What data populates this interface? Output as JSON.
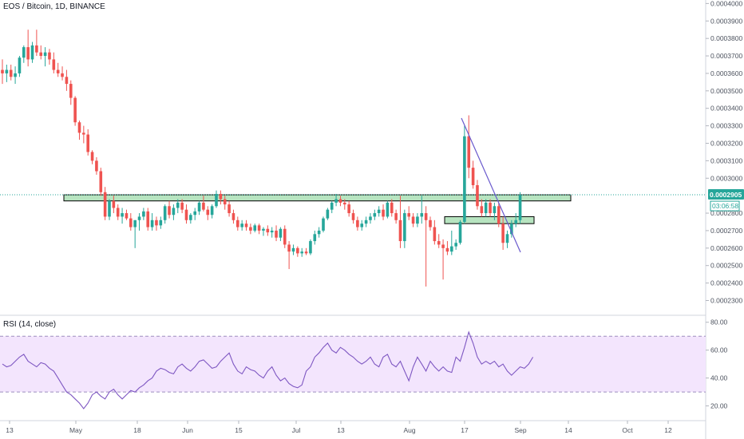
{
  "header": {
    "symbol_title": "EOS / Bitcoin, 1D, BINANCE"
  },
  "rsi": {
    "title": "RSI (14, close)",
    "upper_band": 70,
    "lower_band": 30,
    "y_ticks": [
      "80.00",
      "60.00",
      "40.00",
      "20.00"
    ],
    "series": [
      50,
      48,
      49,
      52,
      55,
      57,
      52,
      50,
      48,
      51,
      50,
      47,
      45,
      40,
      35,
      30,
      28,
      25,
      22,
      18,
      22,
      28,
      30,
      27,
      25,
      30,
      32,
      28,
      25,
      28,
      31,
      30,
      33,
      35,
      38,
      40,
      45,
      47,
      46,
      44,
      43,
      48,
      50,
      47,
      45,
      48,
      52,
      53,
      50,
      47,
      48,
      52,
      55,
      58,
      50,
      45,
      43,
      48,
      46,
      45,
      42,
      40,
      45,
      48,
      42,
      38,
      40,
      36,
      34,
      33,
      35,
      45,
      48,
      55,
      58,
      62,
      65,
      60,
      58,
      62,
      60,
      57,
      55,
      52,
      50,
      52,
      55,
      50,
      48,
      55,
      57,
      50,
      48,
      52,
      45,
      38,
      48,
      55,
      50,
      45,
      52,
      48,
      45,
      48,
      45,
      44,
      55,
      52,
      62,
      73,
      65,
      55,
      50,
      52,
      50,
      52,
      48,
      50,
      45,
      42,
      45,
      48,
      47,
      50,
      55
    ]
  },
  "price_axis": {
    "ticks": [
      "0.0004000",
      "0.0003900",
      "0.0003800",
      "0.0003700",
      "0.0003600",
      "0.0003500",
      "0.0003400",
      "0.0003300",
      "0.0003200",
      "0.0003100",
      "0.0003000",
      "0.0002800",
      "0.0002700",
      "0.0002600",
      "0.0002500",
      "0.0002400",
      "0.0002300"
    ],
    "last_price": "0.0002905",
    "countdown": "03:06:58",
    "last_price_color": "#26a69a"
  },
  "time_axis": {
    "labels": [
      "13",
      "May",
      "18",
      "Jun",
      "15",
      "Jul",
      "13",
      "Aug",
      "17",
      "Sep",
      "14",
      "Oct",
      "12"
    ]
  },
  "colors": {
    "up": "#26a69a",
    "down": "#ef5350",
    "rsi_line": "#7e57c2",
    "rsi_band_fill": "#f3e5fd",
    "zone_fill": "#b7e4c0",
    "trendline": "#6a5acd"
  },
  "chart_data": {
    "type": "candlestick",
    "title": "EOS / Bitcoin, 1D, BINANCE",
    "ylim": [
      0.000222,
      0.000402
    ],
    "series": [
      {
        "ohlc": [
          [
            0.000362,
            0.000368,
            0.000354,
            0.00036
          ],
          [
            0.00036,
            0.000365,
            0.000355,
            0.000362
          ],
          [
            0.000362,
            0.000365,
            0.000356,
            0.000358
          ],
          [
            0.000358,
            0.000364,
            0.000354,
            0.00036
          ],
          [
            0.00036,
            0.00037,
            0.000358,
            0.000369
          ],
          [
            0.000369,
            0.000376,
            0.000366,
            0.000375
          ],
          [
            0.000375,
            0.000385,
            0.000364,
            0.000368
          ],
          [
            0.000368,
            0.000378,
            0.000366,
            0.000376
          ],
          [
            0.000376,
            0.000385,
            0.00037,
            0.000372
          ],
          [
            0.000372,
            0.000376,
            0.000368,
            0.00037
          ],
          [
            0.00037,
            0.000375,
            0.000364,
            0.000372
          ],
          [
            0.000372,
            0.000374,
            0.000365,
            0.000368
          ],
          [
            0.000368,
            0.000372,
            0.00036,
            0.000362
          ],
          [
            0.000362,
            0.000366,
            0.000358,
            0.00036
          ],
          [
            0.00036,
            0.000364,
            0.000356,
            0.000358
          ],
          [
            0.000358,
            0.000362,
            0.00035,
            0.000354
          ],
          [
            0.000354,
            0.000356,
            0.000342,
            0.000346
          ],
          [
            0.000346,
            0.000347,
            0.00033,
            0.000332
          ],
          [
            0.000332,
            0.000333,
            0.000322,
            0.000326
          ],
          [
            0.000326,
            0.00033,
            0.00032,
            0.000325
          ],
          [
            0.000325,
            0.000328,
            0.000313,
            0.000315
          ],
          [
            0.000315,
            0.000316,
            0.000308,
            0.00031
          ],
          [
            0.00031,
            0.000312,
            0.000302,
            0.000304
          ],
          [
            0.000304,
            0.000306,
            0.00029,
            0.000292
          ],
          [
            0.000292,
            0.000295,
            0.000276,
            0.000278
          ],
          [
            0.000278,
            0.000288,
            0.000276,
            0.000287
          ],
          [
            0.000287,
            0.00029,
            0.00028,
            0.000283
          ],
          [
            0.000283,
            0.000285,
            0.000276,
            0.000278
          ],
          [
            0.000278,
            0.000283,
            0.000274,
            0.00028
          ],
          [
            0.00028,
            0.000282,
            0.000276,
            0.000277
          ],
          [
            0.000277,
            0.00028,
            0.00027,
            0.000272
          ],
          [
            0.000272,
            0.000276,
            0.00026,
            0.000276
          ],
          [
            0.000276,
            0.00028,
            0.00027,
            0.000278
          ],
          [
            0.000278,
            0.000283,
            0.000276,
            0.000281
          ],
          [
            0.000281,
            0.000283,
            0.00027,
            0.000272
          ],
          [
            0.000272,
            0.00028,
            0.00027,
            0.000276
          ],
          [
            0.000276,
            0.000278,
            0.00027,
            0.000273
          ],
          [
            0.000273,
            0.000278,
            0.000271,
            0.000276
          ],
          [
            0.000276,
            0.000285,
            0.000274,
            0.000284
          ],
          [
            0.000284,
            0.000287,
            0.000277,
            0.000279
          ],
          [
            0.000279,
            0.000285,
            0.000276,
            0.000283
          ],
          [
            0.000283,
            0.000288,
            0.00028,
            0.000286
          ],
          [
            0.000286,
            0.000288,
            0.00028,
            0.000282
          ],
          [
            0.000282,
            0.000285,
            0.000274,
            0.000276
          ],
          [
            0.000276,
            0.00028,
            0.000274,
            0.000279
          ],
          [
            0.000279,
            0.000283,
            0.000276,
            0.000281
          ],
          [
            0.000281,
            0.000287,
            0.000279,
            0.000286
          ],
          [
            0.000286,
            0.00029,
            0.000281,
            0.000282
          ],
          [
            0.000282,
            0.000284,
            0.000276,
            0.000279
          ],
          [
            0.000279,
            0.000285,
            0.000277,
            0.000284
          ],
          [
            0.000284,
            0.000293,
            0.000283,
            0.000291
          ],
          [
            0.000291,
            0.000293,
            0.000285,
            0.000288
          ],
          [
            0.000288,
            0.00029,
            0.000282,
            0.000285
          ],
          [
            0.000285,
            0.000287,
            0.000278,
            0.00028
          ],
          [
            0.00028,
            0.000282,
            0.000274,
            0.000276
          ],
          [
            0.000276,
            0.000278,
            0.00027,
            0.000272
          ],
          [
            0.000272,
            0.000276,
            0.00027,
            0.000274
          ],
          [
            0.000274,
            0.000276,
            0.00027,
            0.000272
          ],
          [
            0.000272,
            0.000274,
            0.000268,
            0.00027
          ],
          [
            0.00027,
            0.000274,
            0.000269,
            0.000273
          ],
          [
            0.000273,
            0.000274,
            0.000268,
            0.00027
          ],
          [
            0.00027,
            0.000272,
            0.000267,
            0.000271
          ],
          [
            0.000271,
            0.000273,
            0.000267,
            0.000269
          ],
          [
            0.000269,
            0.000272,
            0.000266,
            0.00027
          ],
          [
            0.00027,
            0.000273,
            0.000264,
            0.000266
          ],
          [
            0.000266,
            0.000272,
            0.000264,
            0.000271
          ],
          [
            0.000271,
            0.000273,
            0.00026,
            0.000262
          ],
          [
            0.000262,
            0.000264,
            0.000248,
            0.000258
          ],
          [
            0.000258,
            0.000262,
            0.000256,
            0.00026
          ],
          [
            0.00026,
            0.000261,
            0.000255,
            0.000257
          ],
          [
            0.000257,
            0.00026,
            0.000255,
            0.000258
          ],
          [
            0.000258,
            0.00026,
            0.000256,
            0.000257
          ],
          [
            0.000257,
            0.000265,
            0.000256,
            0.000264
          ],
          [
            0.000264,
            0.00027,
            0.000262,
            0.000268
          ],
          [
            0.000268,
            0.000272,
            0.000266,
            0.00027
          ],
          [
            0.00027,
            0.000278,
            0.000269,
            0.000277
          ],
          [
            0.000277,
            0.000283,
            0.000276,
            0.000282
          ],
          [
            0.000282,
            0.000287,
            0.00028,
            0.000286
          ],
          [
            0.000286,
            0.000291,
            0.000284,
            0.000288
          ],
          [
            0.000288,
            0.00029,
            0.000284,
            0.000286
          ],
          [
            0.000286,
            0.000288,
            0.000282,
            0.000285
          ],
          [
            0.000285,
            0.000287,
            0.000278,
            0.00028
          ],
          [
            0.00028,
            0.000282,
            0.000274,
            0.000276
          ],
          [
            0.000276,
            0.000278,
            0.00027,
            0.000272
          ],
          [
            0.000272,
            0.000276,
            0.00027,
            0.000274
          ],
          [
            0.000274,
            0.000278,
            0.000272,
            0.000276
          ],
          [
            0.000276,
            0.00028,
            0.000274,
            0.000278
          ],
          [
            0.000278,
            0.000282,
            0.000276,
            0.00028
          ],
          [
            0.00028,
            0.000284,
            0.000278,
            0.000282
          ],
          [
            0.000282,
            0.000285,
            0.000276,
            0.000278
          ],
          [
            0.000278,
            0.000287,
            0.000277,
            0.000286
          ],
          [
            0.000286,
            0.000288,
            0.000278,
            0.00028
          ],
          [
            0.00028,
            0.000282,
            0.000274,
            0.000276
          ],
          [
            0.000276,
            0.00029,
            0.00026,
            0.000264
          ],
          [
            0.000264,
            0.000282,
            0.00026,
            0.00028
          ],
          [
            0.00028,
            0.000284,
            0.000276,
            0.000278
          ],
          [
            0.000278,
            0.00028,
            0.000272,
            0.000274
          ],
          [
            0.000274,
            0.00028,
            0.000272,
            0.000278
          ],
          [
            0.000278,
            0.00029,
            0.000274,
            0.00028
          ],
          [
            0.00028,
            0.000284,
            0.000238,
            0.000276
          ],
          [
            0.000276,
            0.000278,
            0.00027,
            0.000272
          ],
          [
            0.000272,
            0.000276,
            0.000262,
            0.000264
          ],
          [
            0.000264,
            0.000268,
            0.00026,
            0.000262
          ],
          [
            0.000262,
            0.000265,
            0.000242,
            0.00026
          ],
          [
            0.00026,
            0.000264,
            0.000256,
            0.000258
          ],
          [
            0.000258,
            0.00027,
            0.000256,
            0.000261
          ],
          [
            0.000261,
            0.000265,
            0.000259,
            0.000263
          ],
          [
            0.000263,
            0.000276,
            0.000262,
            0.000275
          ],
          [
            0.000275,
            0.00033,
            0.000274,
            0.000324
          ],
          [
            0.000324,
            0.000336,
            0.0003,
            0.000306
          ],
          [
            0.000306,
            0.00031,
            0.000294,
            0.000296
          ],
          [
            0.000296,
            0.000299,
            0.000282,
            0.000284
          ],
          [
            0.000284,
            0.000288,
            0.000278,
            0.00028
          ],
          [
            0.00028,
            0.000288,
            0.000278,
            0.000286
          ],
          [
            0.000286,
            0.000288,
            0.000278,
            0.00028
          ],
          [
            0.00028,
            0.000286,
            0.000276,
            0.000284
          ],
          [
            0.000284,
            0.000286,
            0.000272,
            0.000274
          ],
          [
            0.000274,
            0.000278,
            0.000259,
            0.000263
          ],
          [
            0.000263,
            0.00027,
            0.00026,
            0.000268
          ],
          [
            0.000268,
            0.000276,
            0.000266,
            0.000274
          ],
          [
            0.000274,
            0.00028,
            0.000272,
            0.000276
          ],
          [
            0.000276,
            0.000292,
            0.000274,
            0.0002905
          ]
        ]
      }
    ],
    "annotations": {
      "support_zones": [
        {
          "from_index": 0,
          "to_index": 170,
          "low": 0.000287,
          "high": 0.0002905
        },
        {
          "from_index": 0,
          "to_index": 130,
          "low": 0.000274,
          "high": 0.000278
        }
      ]
    }
  }
}
